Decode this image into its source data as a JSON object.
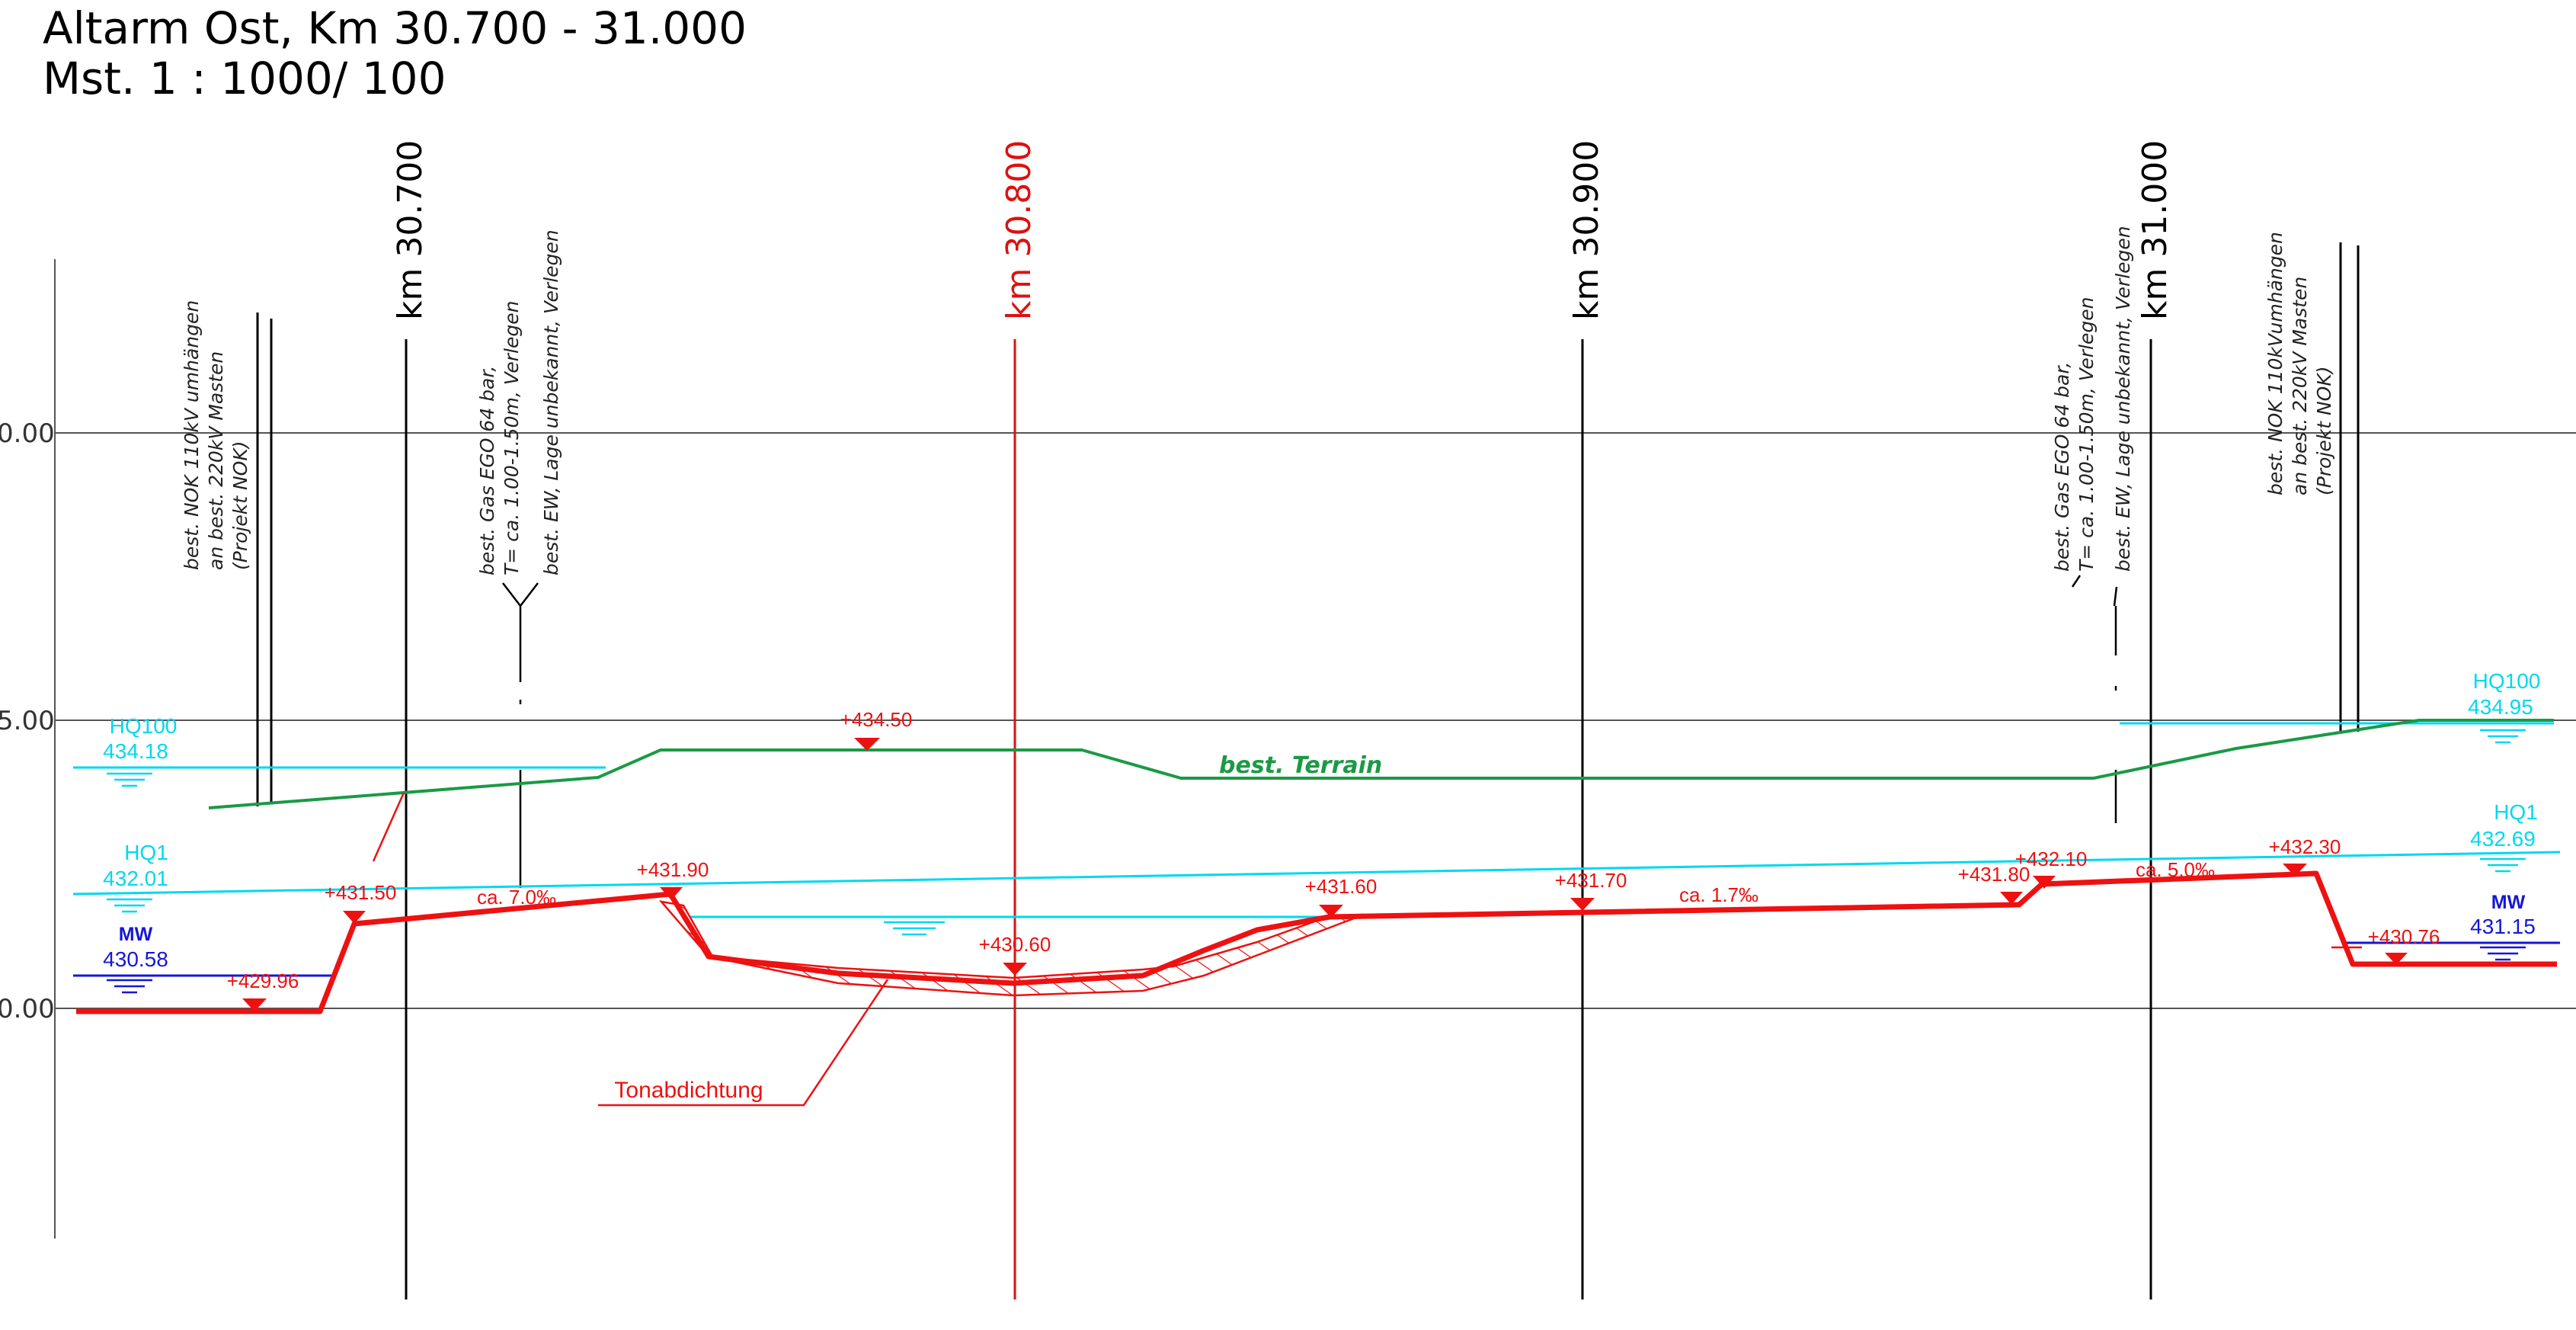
{
  "title": {
    "line1": "Altarm Ost, Km 30.700 - 31.000",
    "line2": "Mst. 1 : 1000/ 100"
  },
  "colors": {
    "terrain": "#1a9a45",
    "design": "#ee1111",
    "water": "#00d8f0",
    "mw": "#1616d8",
    "grid": "#555555",
    "ink": "#000000"
  },
  "elevation_ticks": [
    "0.00",
    "5.00",
    "0.00"
  ],
  "stations": [
    {
      "label": "km  30.700",
      "highlight": false
    },
    {
      "label": "km  30.800",
      "highlight": true
    },
    {
      "label": "km  30.900",
      "highlight": false
    },
    {
      "label": "km  31.000",
      "highlight": false
    }
  ],
  "notes": {
    "nok_left": [
      "best. NOK 110kV umhängen",
      "an best. 220kV Masten",
      "(Projekt NOK)"
    ],
    "gas_left": [
      "best. Gas EGO 64 bar,",
      "T= ca. 1.00-1.50m, Verlegen"
    ],
    "ew_left": "best. EW, Lage unbekannt, Verlegen",
    "gas_right": [
      "best. Gas EGO 64 bar,",
      "T= ca. 1.00-1.50m, Verlegen"
    ],
    "ew_right": "best. EW, Lage unbekannt, Verlegen",
    "nok_right": [
      "best. NOK 110kVumhängen",
      "an best. 220kV Masten",
      "(Projekt NOK)"
    ]
  },
  "water_levels": {
    "hq100_left": {
      "label": "HQ100",
      "value": "434.18"
    },
    "hq1_left": {
      "label": "HQ1",
      "value": "432.01"
    },
    "mw_left": {
      "label": "MW",
      "value": "430.58"
    },
    "hq100_right": {
      "label": "HQ100",
      "value": "434.95"
    },
    "hq1_right": {
      "label": "HQ1",
      "value": "432.69"
    },
    "mw_right": {
      "label": "MW",
      "value": "431.15"
    }
  },
  "terrain_label": "best. Terrain",
  "elevations": {
    "e429_96": "+429.96",
    "e431_50": "+431.50",
    "e431_90": "+431.90",
    "e434_50": "+434.50",
    "e430_60": "+430.60",
    "e431_60": "+431.60",
    "e431_70": "+431.70",
    "e431_80": "+431.80",
    "e432_10": "+432.10",
    "e432_30": "+432.30",
    "e430_76": "+430.76"
  },
  "slopes": {
    "s1": "ca. 7.0‰",
    "s2": "ca. 1.7‰",
    "s3": "ca. 5.0‰"
  },
  "clay_label": "Tonabdichtung"
}
